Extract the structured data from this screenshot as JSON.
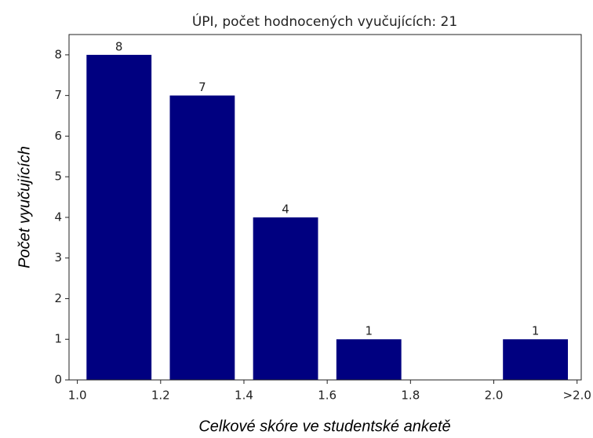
{
  "chart_data": {
    "type": "histogram",
    "title": "ÚPI, počet hodnocených vyučujících: 21",
    "xlabel": "Celkové skóre ve studentské anketě",
    "ylabel": "Počet vyučujících",
    "bins": [
      1.0,
      1.2,
      1.4,
      1.6,
      1.8,
      2.0,
      2.2
    ],
    "values": [
      8,
      7,
      4,
      1,
      0,
      1
    ],
    "color": "#000080",
    "xlim": [
      0.98,
      2.21
    ],
    "ylim": [
      0,
      8.5
    ],
    "xticks": [
      1.0,
      1.2,
      1.4,
      1.6,
      1.8,
      2.0,
      {
        "value": 2.2,
        "label": ">2.0"
      }
    ],
    "yticks": [
      0,
      1,
      2,
      3,
      4,
      5,
      6,
      7,
      8
    ],
    "grid": false
  }
}
